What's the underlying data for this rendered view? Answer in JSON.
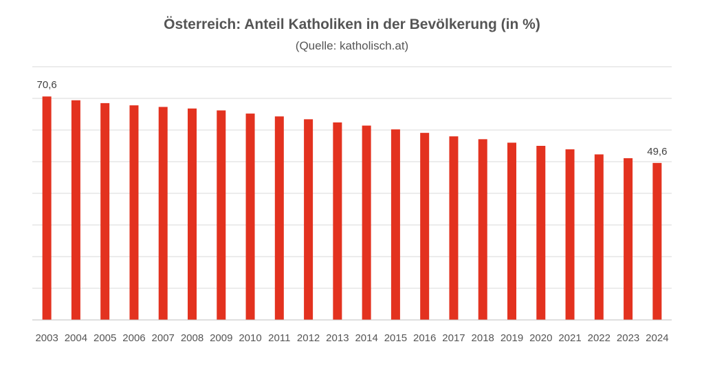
{
  "chart_data": {
    "type": "bar",
    "title": "Österreich: Anteil Katholiken in der Bevölkerung (in %)",
    "subtitle": "(Quelle: katholisch.at)",
    "xlabel": "",
    "ylabel": "",
    "categories": [
      "2003",
      "2004",
      "2005",
      "2006",
      "2007",
      "2008",
      "2009",
      "2010",
      "2011",
      "2012",
      "2013",
      "2014",
      "2015",
      "2016",
      "2017",
      "2018",
      "2019",
      "2020",
      "2021",
      "2022",
      "2023",
      "2024"
    ],
    "values": [
      70.6,
      69.4,
      68.5,
      67.8,
      67.3,
      66.8,
      66.2,
      65.2,
      64.3,
      63.4,
      62.4,
      61.4,
      60.2,
      59.1,
      58.0,
      57.1,
      56.0,
      55.0,
      53.9,
      52.3,
      51.1,
      49.6
    ],
    "data_labels": [
      {
        "index": 0,
        "text": "70,6"
      },
      {
        "index": 21,
        "text": "49,6"
      }
    ],
    "ylim": [
      0,
      80
    ],
    "grid": true,
    "bar_color": "#e3321f",
    "grid_color": "#d9d9d9",
    "axis_color": "#bfbfbf",
    "text_color": "#555555"
  }
}
